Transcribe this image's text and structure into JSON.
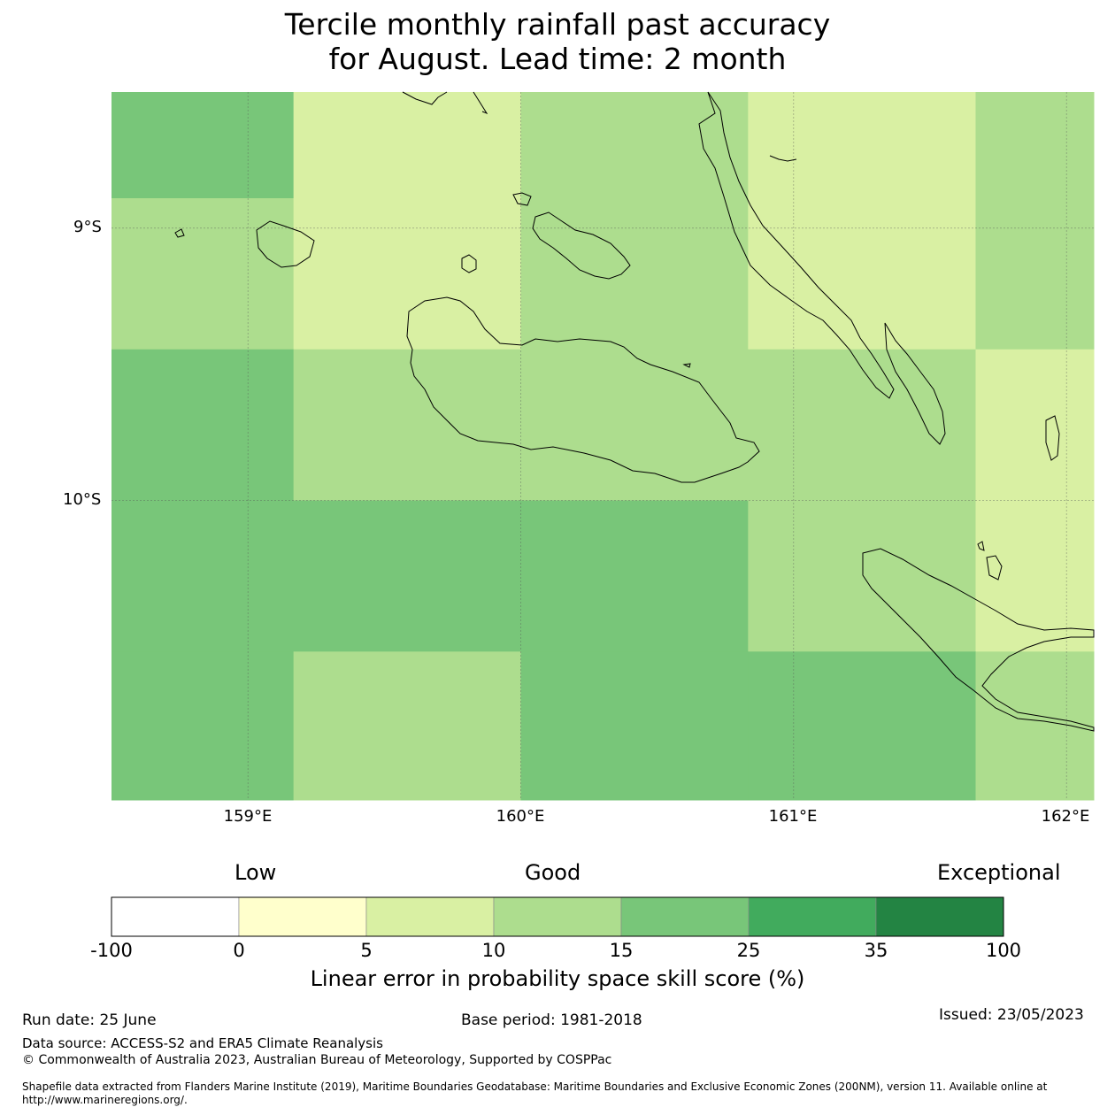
{
  "title_line1": "Tercile monthly rainfall past accuracy",
  "title_line2": "for August. Lead time: 2 month",
  "map": {
    "lon_range": [
      158.5,
      162.1
    ],
    "lat_range": [
      -8.5,
      -11.1
    ],
    "lon_ticks": [
      {
        "value": 159,
        "label": "159°E"
      },
      {
        "value": 160,
        "label": "160°E"
      },
      {
        "value": 161,
        "label": "161°E"
      },
      {
        "value": 162,
        "label": "162°E"
      }
    ],
    "lat_ticks": [
      {
        "value": -9,
        "label": "9°S"
      },
      {
        "value": -10,
        "label": "10°S"
      }
    ],
    "grid_on": true,
    "cell_lon_edges": [
      158.5,
      159.167,
      160.0,
      160.833,
      161.667,
      162.1
    ],
    "cell_lat_edges": [
      -8.5,
      -8.89,
      -9.445,
      -10.0,
      -10.555,
      -11.1
    ],
    "cell_classes": [
      [
        4,
        2,
        3,
        2,
        3
      ],
      [
        3,
        2,
        3,
        2,
        3
      ],
      [
        4,
        3,
        3,
        3,
        2
      ],
      [
        4,
        4,
        4,
        3,
        2
      ],
      [
        4,
        3,
        4,
        4,
        3
      ]
    ]
  },
  "legend": {
    "caption_low": "Low",
    "caption_good": "Good",
    "caption_exceptional": "Exceptional",
    "colors": [
      "#ffffff",
      "#ffffcc",
      "#d9f0a3",
      "#addd8e",
      "#78c679",
      "#41ab5d",
      "#238443"
    ],
    "boundaries": [
      "-100",
      "0",
      "5",
      "10",
      "15",
      "25",
      "35",
      "100"
    ],
    "label": "Linear error in probability space skill score (%)"
  },
  "footer": {
    "run_date": "Run date: 25 June",
    "base_period": "Base period: 1981-2018",
    "issued": "Issued: 23/05/2023",
    "data_source": "Data source: ACCESS-S2 and ERA5 Climate Reanalysis",
    "copyright": "© Commonwealth of Australia 2023, Australian Bureau of Meteorology, Supported by COSPPac",
    "shapefile": "Shapefile data extracted from Flanders Marine Institute (2019), Maritime Boundaries Geodatabase: Maritime Boundaries and Exclusive Economic Zones (200NM), version 11. Available online at http://www.marineregions.org/."
  }
}
